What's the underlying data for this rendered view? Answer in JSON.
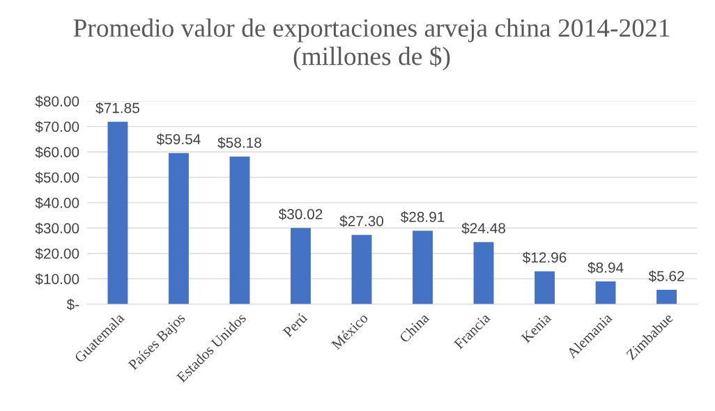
{
  "chart_data": {
    "type": "bar",
    "title": "Promedio valor de exportaciones arveja china 2014-2021 (millones de $)",
    "categories": [
      "Guatemala",
      "Países Bajos",
      "Estados Unidos",
      "Perú",
      "México",
      "China",
      "Francia",
      "Kenia",
      "Alemania",
      "Zimbabue"
    ],
    "values": [
      71.85,
      59.54,
      58.18,
      30.02,
      27.3,
      28.91,
      24.48,
      12.96,
      8.94,
      5.62
    ],
    "value_labels": [
      "$71.85",
      "$59.54",
      "$58.18",
      "$30.02",
      "$27.30",
      "$28.91",
      "$24.48",
      "$12.96",
      "$8.94",
      "$5.62"
    ],
    "color": "#4472c4",
    "ylim": [
      0,
      80
    ],
    "yticks": [
      {
        "value": 0,
        "label": "$-"
      },
      {
        "value": 10,
        "label": "$10.00"
      },
      {
        "value": 20,
        "label": "$20.00"
      },
      {
        "value": 30,
        "label": "$30.00"
      },
      {
        "value": 40,
        "label": "$40.00"
      },
      {
        "value": 50,
        "label": "$50.00"
      },
      {
        "value": 60,
        "label": "$60.00"
      },
      {
        "value": 70,
        "label": "$70.00"
      },
      {
        "value": 80,
        "label": "$80.00"
      }
    ],
    "grid": "y"
  }
}
